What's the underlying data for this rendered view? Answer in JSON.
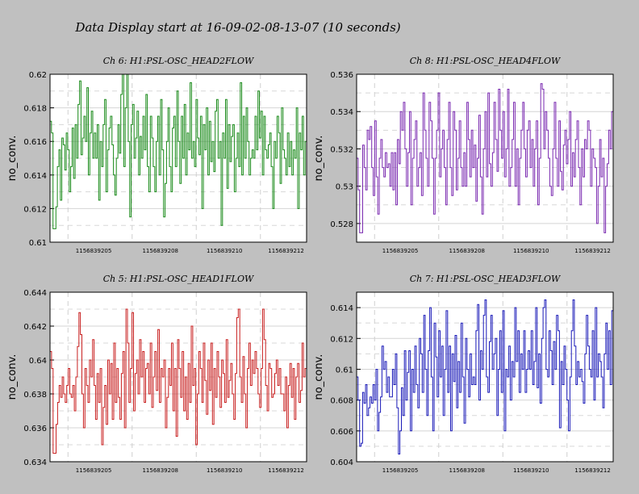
{
  "page": {
    "title": "Data Display start at 16-09-02-08-13-07 (10 seconds)"
  },
  "chart_data": [
    {
      "type": "line",
      "title": "Ch 6: H1:PSL-OSC_HEAD2FLOW",
      "ylabel": "no_conv.",
      "xlabel": "",
      "color": "#1a8a1a",
      "ylim": [
        0.61,
        0.62
      ],
      "yticks": [
        0.61,
        0.612,
        0.614,
        0.616,
        0.618,
        0.62
      ],
      "yticklabels": [
        "0.61",
        "0.612",
        "0.614",
        "0.616",
        "0.618",
        "0.62"
      ],
      "xticklabels": [
        "1156839205",
        "1156839208",
        "1156839210",
        "1156839212"
      ],
      "xtick_positions": [
        0.25,
        0.5,
        0.75,
        1.0
      ],
      "grid": true,
      "values": [
        0.6172,
        0.6165,
        0.6108,
        0.6108,
        0.6121,
        0.6145,
        0.6155,
        0.6125,
        0.6162,
        0.6158,
        0.6143,
        0.6165,
        0.6155,
        0.613,
        0.6145,
        0.6168,
        0.6138,
        0.617,
        0.615,
        0.6182,
        0.6196,
        0.6152,
        0.6162,
        0.6175,
        0.616,
        0.6192,
        0.614,
        0.6165,
        0.6178,
        0.615,
        0.6165,
        0.615,
        0.617,
        0.6125,
        0.616,
        0.6145,
        0.617,
        0.6185,
        0.613,
        0.6155,
        0.6168,
        0.6175,
        0.6158,
        0.614,
        0.6128,
        0.615,
        0.617,
        0.6153,
        0.6188,
        0.62,
        0.6145,
        0.618,
        0.62,
        0.616,
        0.6115,
        0.617,
        0.6182,
        0.615,
        0.6162,
        0.6178,
        0.614,
        0.6163,
        0.615,
        0.6175,
        0.6155,
        0.6188,
        0.6145,
        0.613,
        0.6175,
        0.6162,
        0.6145,
        0.613,
        0.616,
        0.6175,
        0.614,
        0.6185,
        0.6155,
        0.6115,
        0.6135,
        0.616,
        0.618,
        0.6145,
        0.613,
        0.6168,
        0.6175,
        0.6145,
        0.619,
        0.616,
        0.6135,
        0.6175,
        0.615,
        0.6182,
        0.614,
        0.6165,
        0.6155,
        0.6195,
        0.615,
        0.616,
        0.6145,
        0.6185,
        0.6162,
        0.6152,
        0.6175,
        0.612,
        0.617,
        0.6155,
        0.618,
        0.614,
        0.6172,
        0.6148,
        0.616,
        0.6142,
        0.6178,
        0.6185,
        0.615,
        0.616,
        0.611,
        0.6165,
        0.615,
        0.6185,
        0.6132,
        0.617,
        0.6148,
        0.6163,
        0.617,
        0.613,
        0.615,
        0.6165,
        0.6145,
        0.6195,
        0.614,
        0.6175,
        0.615,
        0.618,
        0.616,
        0.614,
        0.615,
        0.6155,
        0.615,
        0.6175,
        0.6155,
        0.619,
        0.6162,
        0.6178,
        0.614,
        0.6175,
        0.6155,
        0.615,
        0.6158,
        0.6165,
        0.6145,
        0.612,
        0.616,
        0.615,
        0.6175,
        0.6165,
        0.6135,
        0.618,
        0.6155,
        0.615,
        0.614,
        0.6165,
        0.6145,
        0.616,
        0.614,
        0.6155,
        0.615,
        0.618,
        0.612,
        0.6165,
        0.6155,
        0.6175,
        0.614,
        0.616,
        0.615
      ]
    },
    {
      "type": "line",
      "title": "Ch 8: H1:PSL-OSC_HEAD4FLOW",
      "ylabel": "no_conv.",
      "xlabel": "",
      "color": "#7a2ab0",
      "ylim": [
        0.527,
        0.536
      ],
      "yticks": [
        0.528,
        0.53,
        0.532,
        0.534,
        0.536
      ],
      "yticklabels": [
        "0.528",
        "0.53",
        "0.532",
        "0.534",
        "0.536"
      ],
      "xticklabels": [
        "1156839205",
        "1156839208",
        "1156839210",
        "1156839212"
      ],
      "xtick_positions": [
        0.25,
        0.5,
        0.75,
        1.0
      ],
      "grid": true,
      "values": [
        0.5315,
        0.5298,
        0.5275,
        0.5275,
        0.5322,
        0.531,
        0.5298,
        0.533,
        0.5325,
        0.5332,
        0.531,
        0.5295,
        0.5335,
        0.5305,
        0.5285,
        0.5315,
        0.5325,
        0.531,
        0.5305,
        0.5318,
        0.531,
        0.5312,
        0.53,
        0.5318,
        0.5298,
        0.5318,
        0.529,
        0.5325,
        0.5312,
        0.534,
        0.533,
        0.5345,
        0.532,
        0.53,
        0.5318,
        0.534,
        0.529,
        0.5315,
        0.5325,
        0.5335,
        0.53,
        0.531,
        0.5318,
        0.5295,
        0.535,
        0.533,
        0.5315,
        0.53,
        0.5345,
        0.5335,
        0.5315,
        0.5285,
        0.5315,
        0.533,
        0.535,
        0.5305,
        0.532,
        0.533,
        0.531,
        0.529,
        0.5325,
        0.5345,
        0.531,
        0.5295,
        0.534,
        0.533,
        0.5298,
        0.5315,
        0.5335,
        0.531,
        0.53,
        0.5318,
        0.53,
        0.5345,
        0.5325,
        0.5305,
        0.533,
        0.531,
        0.5322,
        0.5292,
        0.5315,
        0.5338,
        0.5305,
        0.5285,
        0.532,
        0.534,
        0.5305,
        0.535,
        0.5312,
        0.53,
        0.5318,
        0.5345,
        0.5325,
        0.5308,
        0.5352,
        0.533,
        0.5315,
        0.534,
        0.5305,
        0.532,
        0.5352,
        0.53,
        0.531,
        0.5325,
        0.5345,
        0.53,
        0.532,
        0.529,
        0.5315,
        0.533,
        0.5345,
        0.532,
        0.5305,
        0.533,
        0.5335,
        0.531,
        0.5325,
        0.53,
        0.532,
        0.5335,
        0.529,
        0.5315,
        0.5355,
        0.5352,
        0.532,
        0.534,
        0.533,
        0.5315,
        0.53,
        0.5295,
        0.532,
        0.5345,
        0.5315,
        0.53,
        0.5335,
        0.5308,
        0.5298,
        0.5322,
        0.533,
        0.5312,
        0.5325,
        0.534,
        0.53,
        0.5318,
        0.5305,
        0.5325,
        0.5335,
        0.531,
        0.529,
        0.532,
        0.5305,
        0.5325,
        0.532,
        0.5335,
        0.533,
        0.53,
        0.532,
        0.5315,
        0.531,
        0.528,
        0.53,
        0.5325,
        0.5305,
        0.5315,
        0.5275,
        0.53,
        0.5312,
        0.533,
        0.532,
        0.534,
        0.5315
      ]
    },
    {
      "type": "line",
      "title": "Ch 5: H1:PSL-OSC_HEAD1FLOW",
      "ylabel": "no_conv.",
      "xlabel": "",
      "color": "#c82020",
      "ylim": [
        0.634,
        0.644
      ],
      "yticks": [
        0.634,
        0.636,
        0.638,
        0.64,
        0.642,
        0.644
      ],
      "yticklabels": [
        "0.634",
        "0.636",
        "0.638",
        "0.64",
        "0.642",
        "0.644"
      ],
      "xticklabels": [
        "1156839205",
        "1156839208",
        "1156839210",
        "1156839212"
      ],
      "xtick_positions": [
        0.25,
        0.5,
        0.75,
        1.0
      ],
      "grid": true,
      "values": [
        0.6405,
        0.6395,
        0.6345,
        0.6345,
        0.6362,
        0.6375,
        0.6385,
        0.6378,
        0.639,
        0.638,
        0.6375,
        0.6385,
        0.6395,
        0.638,
        0.6378,
        0.6385,
        0.637,
        0.639,
        0.6408,
        0.6428,
        0.6415,
        0.638,
        0.636,
        0.6395,
        0.6385,
        0.6375,
        0.64,
        0.639,
        0.6412,
        0.6385,
        0.6365,
        0.6392,
        0.6375,
        0.6395,
        0.635,
        0.6372,
        0.6385,
        0.6362,
        0.64,
        0.638,
        0.6398,
        0.6365,
        0.641,
        0.6375,
        0.6395,
        0.6378,
        0.6365,
        0.6392,
        0.6405,
        0.636,
        0.643,
        0.641,
        0.6375,
        0.6395,
        0.6428,
        0.637,
        0.6392,
        0.64,
        0.638,
        0.6412,
        0.639,
        0.6405,
        0.6375,
        0.6395,
        0.6398,
        0.638,
        0.641,
        0.6372,
        0.639,
        0.6405,
        0.6382,
        0.6418,
        0.6375,
        0.6395,
        0.639,
        0.64,
        0.636,
        0.6378,
        0.6395,
        0.6385,
        0.641,
        0.637,
        0.6395,
        0.6355,
        0.6412,
        0.6395,
        0.6378,
        0.6405,
        0.637,
        0.639,
        0.6365,
        0.6398,
        0.6375,
        0.642,
        0.6385,
        0.6395,
        0.635,
        0.638,
        0.6405,
        0.6395,
        0.6375,
        0.641,
        0.6388,
        0.6368,
        0.64,
        0.6382,
        0.641,
        0.6362,
        0.6395,
        0.6378,
        0.6405,
        0.639,
        0.6372,
        0.64,
        0.6392,
        0.6375,
        0.6412,
        0.6378,
        0.6388,
        0.6398,
        0.638,
        0.6365,
        0.6392,
        0.6425,
        0.643,
        0.639,
        0.6375,
        0.6402,
        0.638,
        0.636,
        0.6395,
        0.641,
        0.6385,
        0.64,
        0.6392,
        0.6405,
        0.6395,
        0.638,
        0.6372,
        0.6395,
        0.643,
        0.6412,
        0.6385,
        0.637,
        0.6398,
        0.6395,
        0.6378,
        0.638,
        0.6392,
        0.64,
        0.6385,
        0.6395,
        0.638,
        0.638,
        0.637,
        0.639,
        0.636,
        0.6385,
        0.6398,
        0.6378,
        0.6395,
        0.6365,
        0.639,
        0.6398,
        0.6375,
        0.6382,
        0.641,
        0.639,
        0.6395,
        0.6415
      ]
    },
    {
      "type": "line",
      "title": "Ch 7: H1:PSL-OSC_HEAD3FLOW",
      "ylabel": "no_conv.",
      "xlabel": "",
      "color": "#1a1ab8",
      "ylim": [
        0.604,
        0.615
      ],
      "yticks": [
        0.604,
        0.606,
        0.608,
        0.61,
        0.612,
        0.614
      ],
      "yticklabels": [
        "0.604",
        "0.606",
        "0.608",
        "0.61",
        "0.612",
        "0.614"
      ],
      "xticklabels": [
        "1156839205",
        "1156839208",
        "1156839210",
        "1156839212"
      ],
      "xtick_positions": [
        0.25,
        0.5,
        0.75,
        1.0
      ],
      "grid": true,
      "values": [
        0.6095,
        0.608,
        0.605,
        0.6052,
        0.6085,
        0.6078,
        0.609,
        0.607,
        0.6075,
        0.6082,
        0.6078,
        0.609,
        0.608,
        0.61,
        0.606,
        0.6072,
        0.6082,
        0.6115,
        0.61,
        0.6105,
        0.6085,
        0.6095,
        0.6082,
        0.6082,
        0.61,
        0.609,
        0.611,
        0.6075,
        0.6045,
        0.606,
        0.6088,
        0.607,
        0.6112,
        0.608,
        0.6098,
        0.6112,
        0.606,
        0.61,
        0.6085,
        0.6115,
        0.609,
        0.6075,
        0.612,
        0.611,
        0.6085,
        0.6135,
        0.61,
        0.607,
        0.6112,
        0.614,
        0.6095,
        0.606,
        0.613,
        0.6108,
        0.6082,
        0.6125,
        0.6095,
        0.6115,
        0.607,
        0.61,
        0.6138,
        0.6085,
        0.6115,
        0.606,
        0.611,
        0.6092,
        0.6122,
        0.6075,
        0.6105,
        0.6085,
        0.613,
        0.6095,
        0.6065,
        0.612,
        0.61,
        0.6082,
        0.611,
        0.609,
        0.6095,
        0.609,
        0.6125,
        0.6142,
        0.608,
        0.6112,
        0.61,
        0.6135,
        0.6145,
        0.6095,
        0.6085,
        0.6118,
        0.6135,
        0.61,
        0.611,
        0.612,
        0.607,
        0.61,
        0.6125,
        0.6085,
        0.6138,
        0.606,
        0.61,
        0.6095,
        0.6115,
        0.608,
        0.6105,
        0.6095,
        0.614,
        0.6105,
        0.6125,
        0.6085,
        0.611,
        0.61,
        0.6125,
        0.6085,
        0.61,
        0.6112,
        0.61,
        0.6125,
        0.609,
        0.6105,
        0.614,
        0.6088,
        0.611,
        0.6078,
        0.612,
        0.614,
        0.6145,
        0.61,
        0.6095,
        0.6125,
        0.6112,
        0.609,
        0.6118,
        0.61,
        0.6135,
        0.6125,
        0.6062,
        0.6105,
        0.609,
        0.6115,
        0.61,
        0.608,
        0.606,
        0.6095,
        0.6125,
        0.6145,
        0.6115,
        0.609,
        0.6105,
        0.6095,
        0.61,
        0.6092,
        0.6078,
        0.611,
        0.6135,
        0.6115,
        0.61,
        0.6095,
        0.6125,
        0.608,
        0.614,
        0.6095,
        0.611,
        0.6105,
        0.6095,
        0.6075,
        0.611,
        0.613,
        0.61,
        0.6125,
        0.609,
        0.6138,
        0.612
      ]
    }
  ]
}
